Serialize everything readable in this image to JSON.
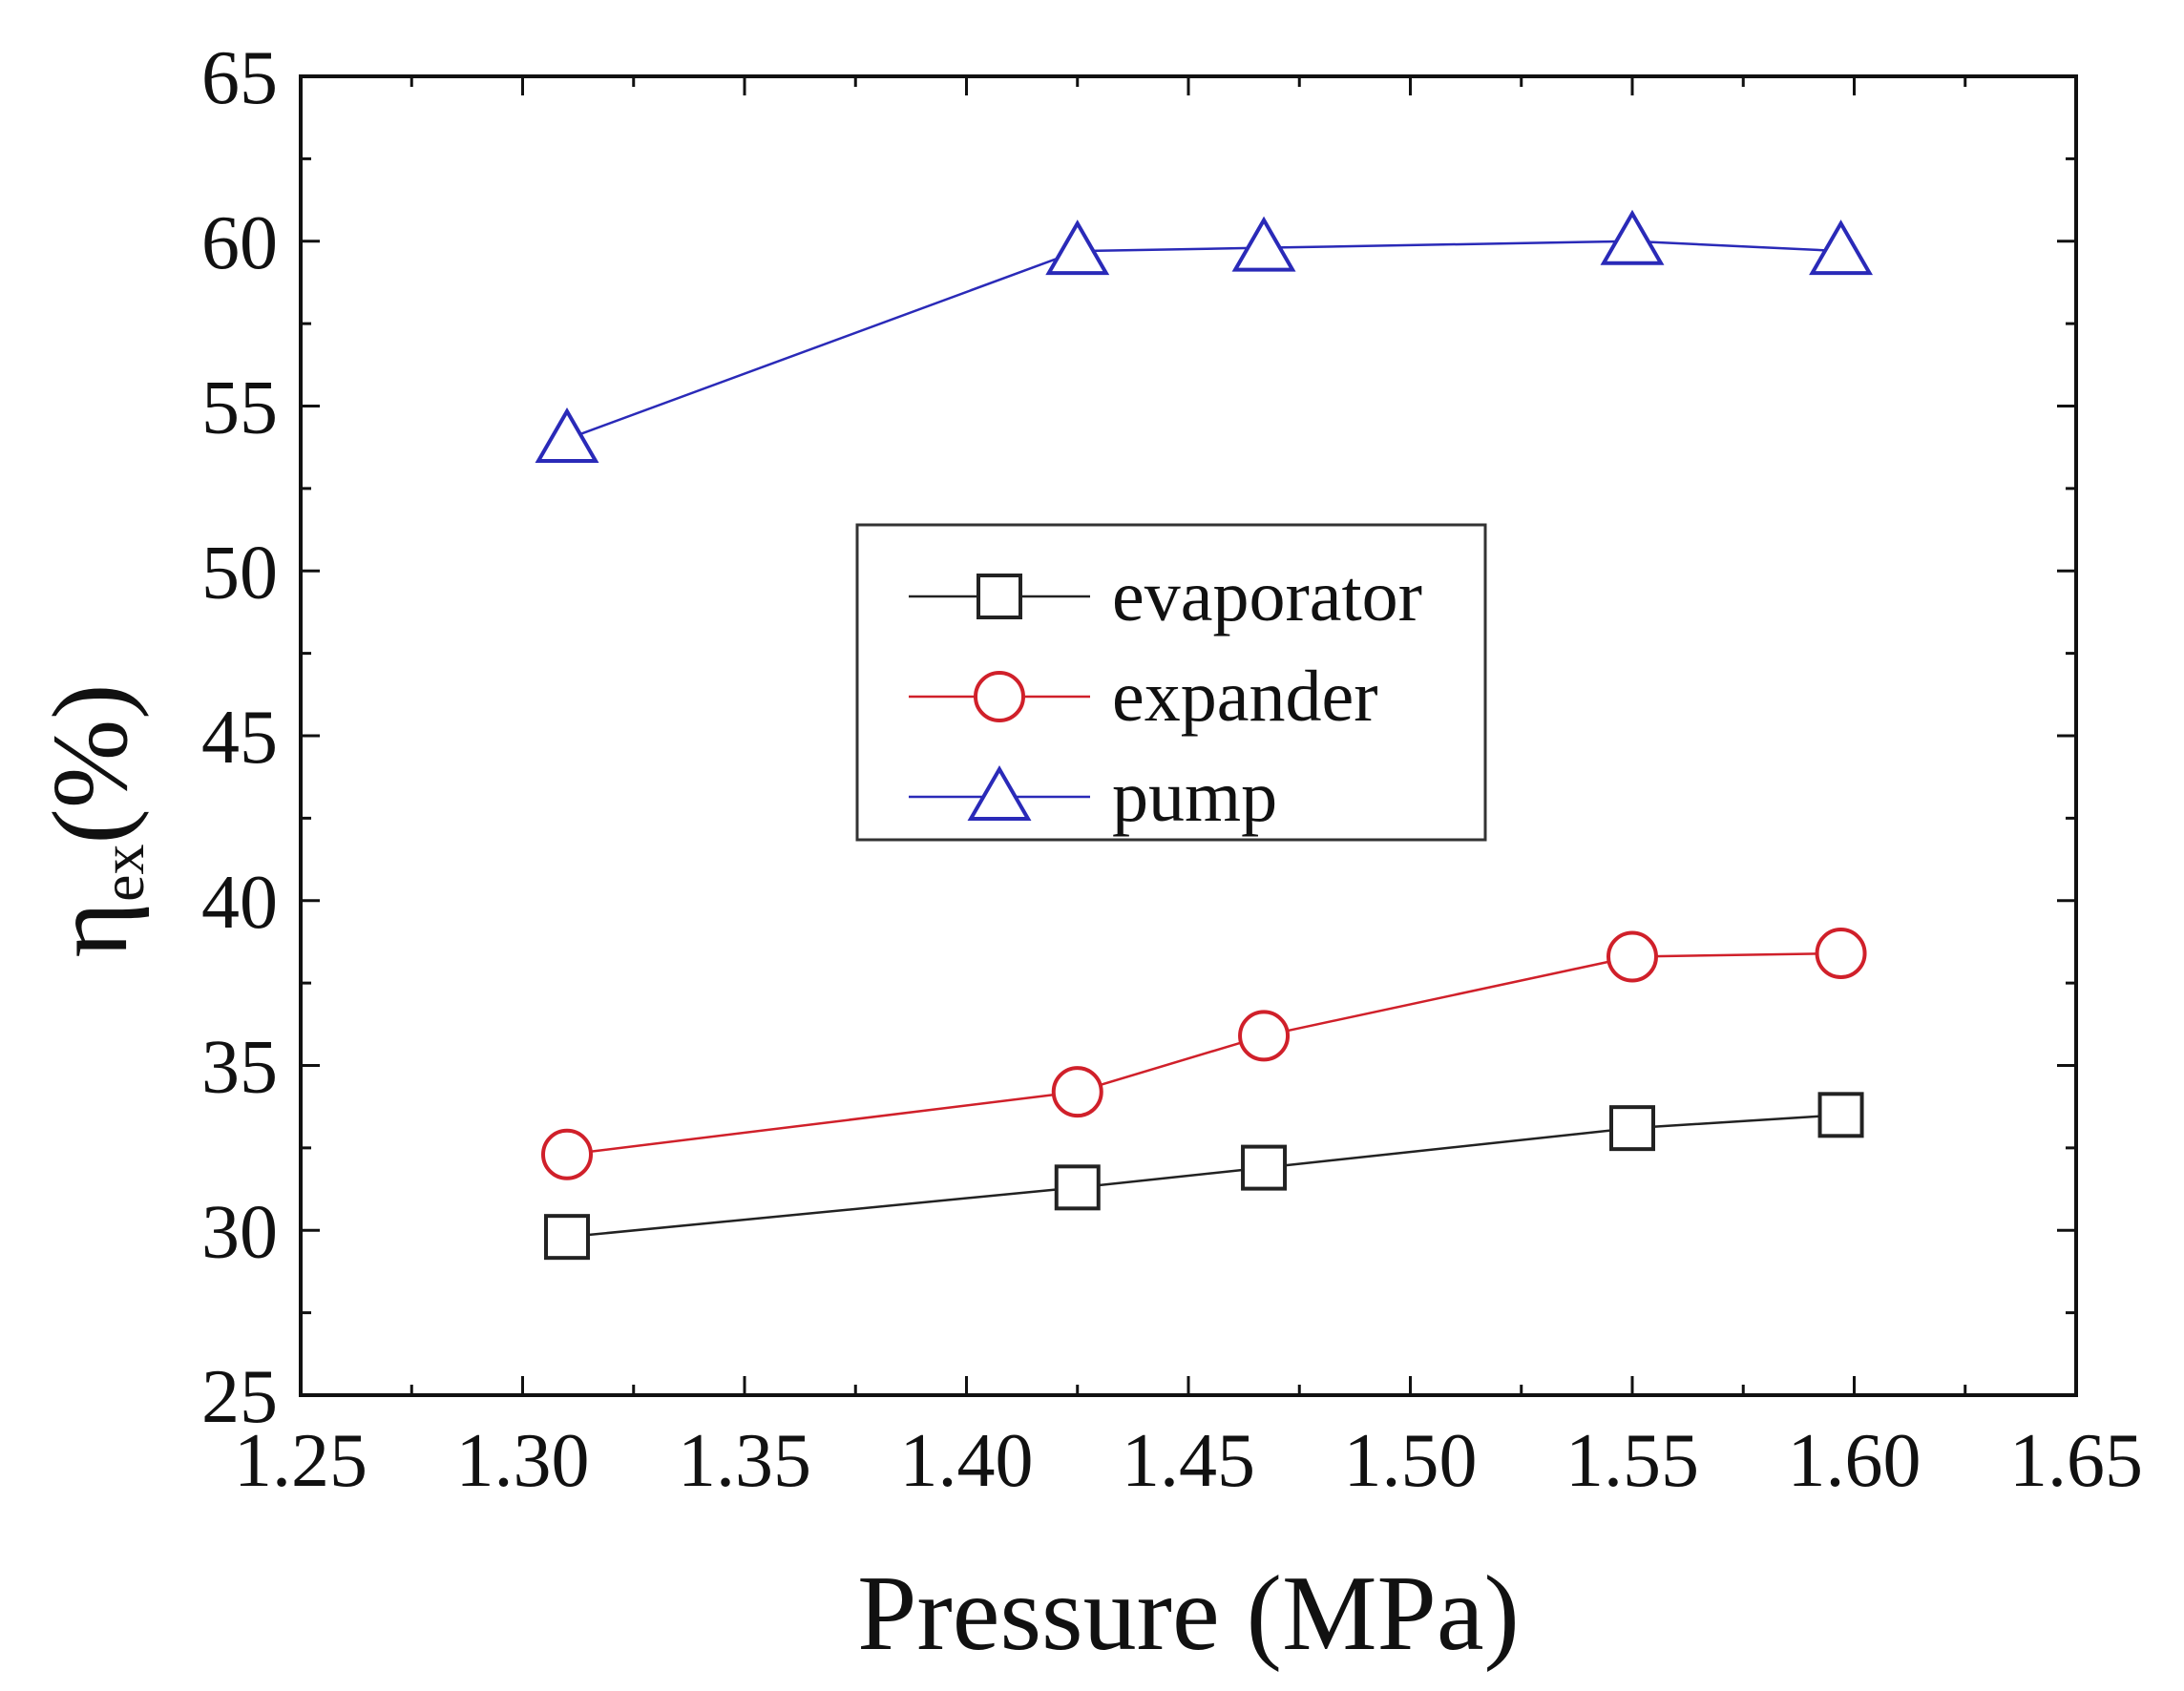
{
  "chart_data": {
    "type": "line",
    "title": "",
    "xlabel": "Pressure (MPa)",
    "ylabel": {
      "base": "η",
      "subscript": "ex",
      "suffix": "(%)"
    },
    "xlim": [
      1.25,
      1.65
    ],
    "ylim": [
      25,
      65
    ],
    "xticks": [
      "1.25",
      "1.30",
      "1.35",
      "1.40",
      "1.45",
      "1.50",
      "1.55",
      "1.60",
      "1.65"
    ],
    "yticks": [
      "25",
      "30",
      "35",
      "40",
      "45",
      "50",
      "55",
      "60",
      "65"
    ],
    "x": [
      1.31,
      1.425,
      1.467,
      1.55,
      1.597
    ],
    "series": [
      {
        "name": "evaporator",
        "marker": "square",
        "color": "#222222",
        "values": [
          29.8,
          31.3,
          31.9,
          33.1,
          33.5
        ]
      },
      {
        "name": "expander",
        "marker": "circle",
        "color": "#d0202a",
        "values": [
          32.3,
          34.2,
          35.9,
          38.3,
          38.4
        ]
      },
      {
        "name": "pump",
        "marker": "triangle",
        "color": "#2a2ab8",
        "values": [
          54.0,
          59.7,
          59.8,
          60.0,
          59.7
        ]
      }
    ],
    "legend_position": "center",
    "grid": false
  }
}
